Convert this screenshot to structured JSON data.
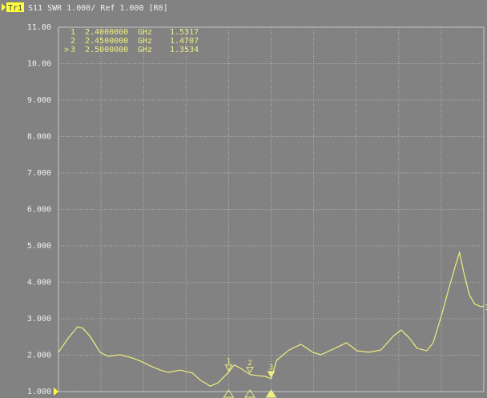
{
  "chart_data": {
    "type": "line",
    "header": {
      "trace": "Tr1",
      "text": "S11 SWR 1.000/ Ref 1.000 [R0]"
    },
    "xlim": [
      2.0,
      3.0
    ],
    "xticks": [
      2.0,
      2.1,
      2.2,
      2.3,
      2.4,
      2.5,
      2.6,
      2.7,
      2.8,
      2.9,
      3.0
    ],
    "ylim": [
      1,
      11
    ],
    "yticks": [
      {
        "value": 1,
        "label": "1.000"
      },
      {
        "value": 2,
        "label": "2.000"
      },
      {
        "value": 3,
        "label": "3.000"
      },
      {
        "value": 4,
        "label": "4.000"
      },
      {
        "value": 5,
        "label": "5.000"
      },
      {
        "value": 6,
        "label": "6.000"
      },
      {
        "value": 7,
        "label": "7.000"
      },
      {
        "value": 8,
        "label": "8.000"
      },
      {
        "value": 9,
        "label": "9.000"
      },
      {
        "value": 10,
        "label": "10.00"
      },
      {
        "value": 11,
        "label": "11.00"
      }
    ],
    "grid": true,
    "series": [
      {
        "name": "1",
        "color": "#eeee80",
        "x": [
          2.0,
          2.023,
          2.045,
          2.057,
          2.074,
          2.098,
          2.117,
          2.145,
          2.174,
          2.192,
          2.221,
          2.24,
          2.258,
          2.287,
          2.315,
          2.334,
          2.357,
          2.375,
          2.4,
          2.413,
          2.428,
          2.45,
          2.466,
          2.485,
          2.5,
          2.513,
          2.542,
          2.57,
          2.598,
          2.617,
          2.645,
          2.677,
          2.702,
          2.73,
          2.758,
          2.787,
          2.806,
          2.825,
          2.843,
          2.866,
          2.881,
          2.9,
          2.919,
          2.934,
          2.943,
          2.953,
          2.966,
          2.979,
          2.994,
          3.0
        ],
        "values": [
          2.08,
          2.47,
          2.78,
          2.74,
          2.52,
          2.08,
          1.97,
          2.01,
          1.92,
          1.84,
          1.68,
          1.59,
          1.53,
          1.59,
          1.51,
          1.31,
          1.15,
          1.24,
          1.5317,
          1.73,
          1.64,
          1.4707,
          1.44,
          1.42,
          1.3534,
          1.86,
          2.14,
          2.3,
          2.08,
          2.01,
          2.16,
          2.34,
          2.12,
          2.08,
          2.14,
          2.52,
          2.69,
          2.47,
          2.19,
          2.12,
          2.34,
          3.07,
          3.88,
          4.49,
          4.82,
          4.27,
          3.66,
          3.4,
          3.33,
          3.35
        ]
      }
    ],
    "markers": {
      "names": [
        "1",
        "2",
        "3"
      ],
      "x": [
        2.4,
        2.45,
        2.5
      ],
      "x_labels": [
        "2.4000000",
        "2.4500000",
        "2.5000000"
      ],
      "unit": "GHz",
      "values": [
        1.5317,
        1.4707,
        1.3534
      ],
      "active_index": 2,
      "active_symbol": ">"
    }
  }
}
